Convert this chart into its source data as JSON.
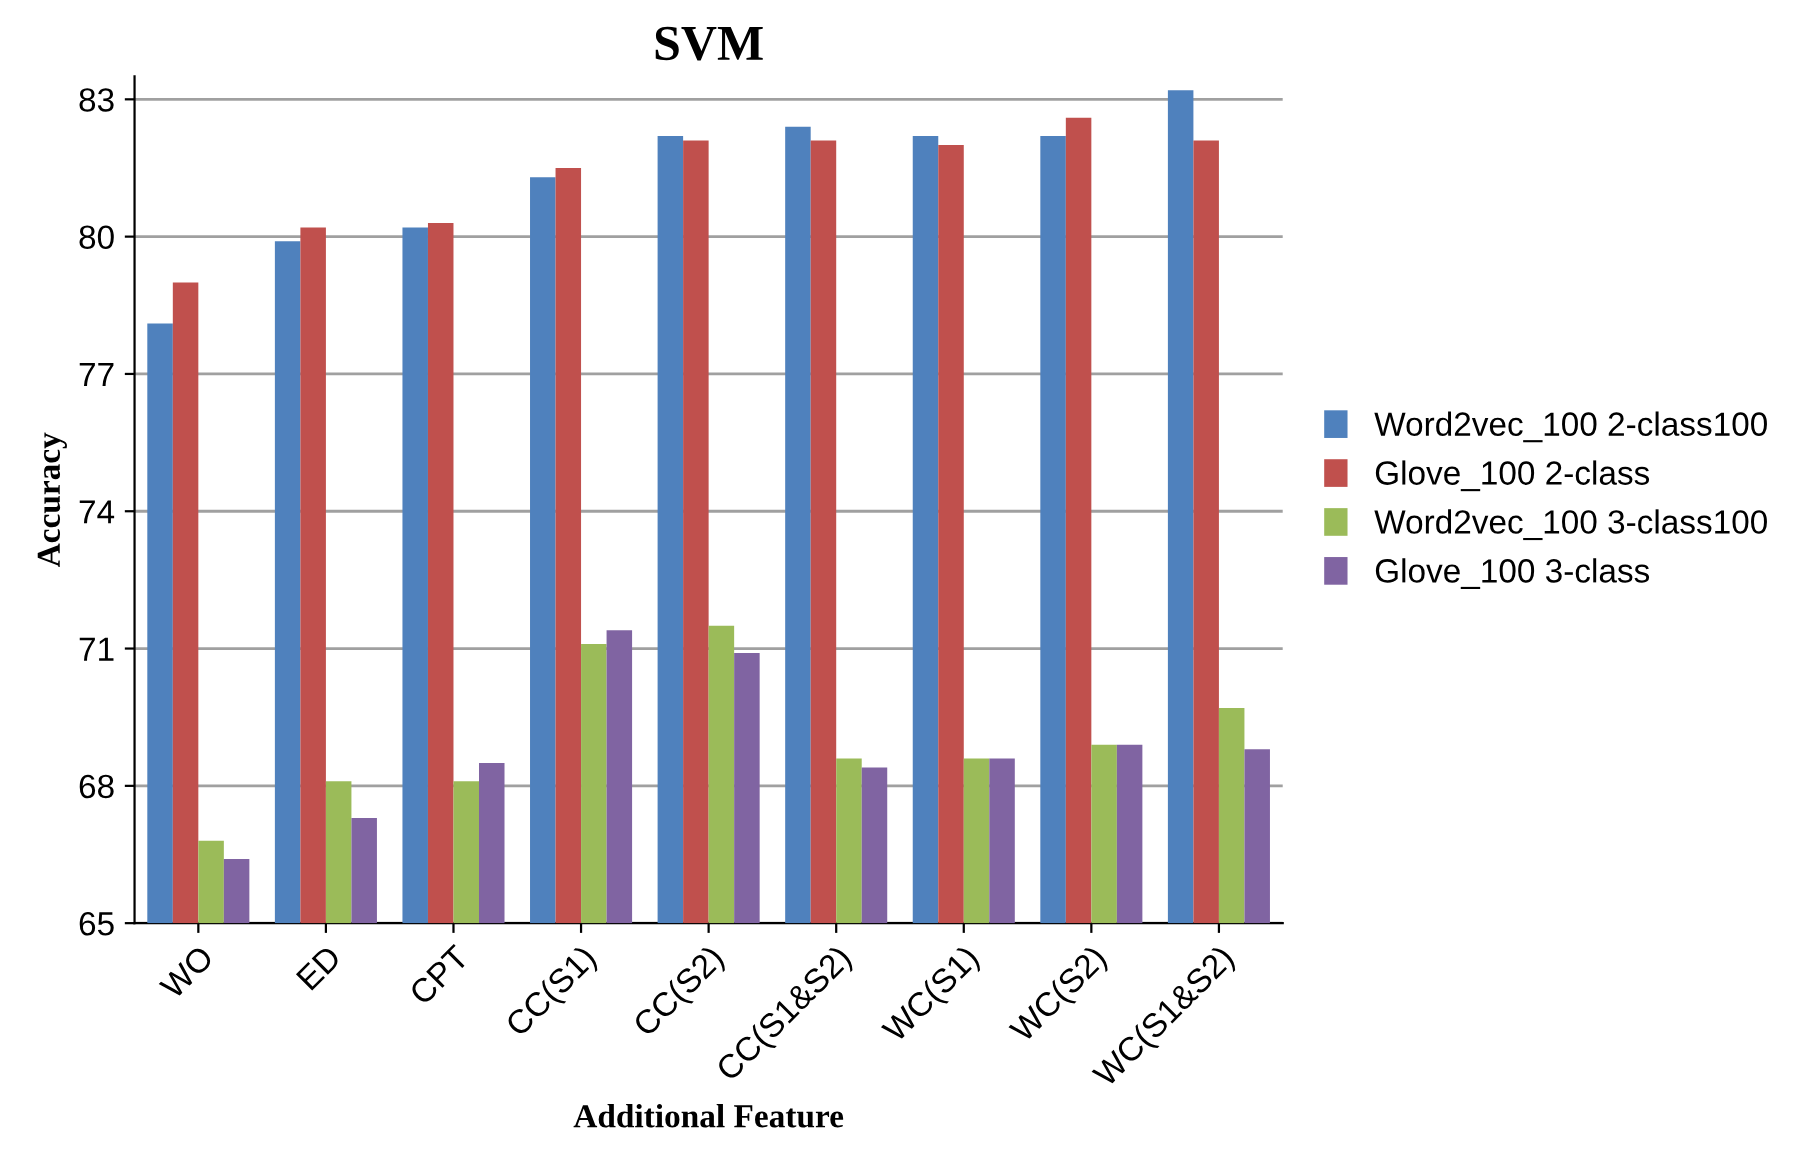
{
  "chart_data": {
    "type": "bar",
    "title": "SVM",
    "xlabel": "Additional Feature",
    "ylabel": "Accuracy",
    "categories": [
      "WO",
      "ED",
      "CPT",
      "CC(S1)",
      "CC(S2)",
      "CC(S1&S2)",
      "WC(S1)",
      "WC(S2)",
      "WC(S1&S2)"
    ],
    "series": [
      {
        "name": "Word2vec_100 2-class100",
        "color": "#4f81bd",
        "values": [
          78.1,
          79.9,
          80.2,
          81.3,
          82.2,
          82.4,
          82.2,
          82.2,
          83.2
        ]
      },
      {
        "name": "Glove_100 2-class",
        "color": "#c0504d",
        "values": [
          79.0,
          80.2,
          80.3,
          81.5,
          82.1,
          82.1,
          82.0,
          82.6,
          82.1
        ]
      },
      {
        "name": "Word2vec_100 3-class100",
        "color": "#9bbb59",
        "values": [
          66.8,
          68.1,
          68.1,
          71.1,
          71.5,
          68.6,
          68.6,
          68.9,
          69.7
        ]
      },
      {
        "name": "Glove_100 3-class",
        "color": "#8064a2",
        "values": [
          66.4,
          67.3,
          68.5,
          71.4,
          70.9,
          68.4,
          68.6,
          68.9,
          68.8
        ]
      }
    ],
    "ylim": [
      65,
      83.5
    ],
    "yticks": [
      65,
      68,
      71,
      74,
      77,
      80,
      83
    ],
    "grid": "y",
    "legend": "right"
  }
}
